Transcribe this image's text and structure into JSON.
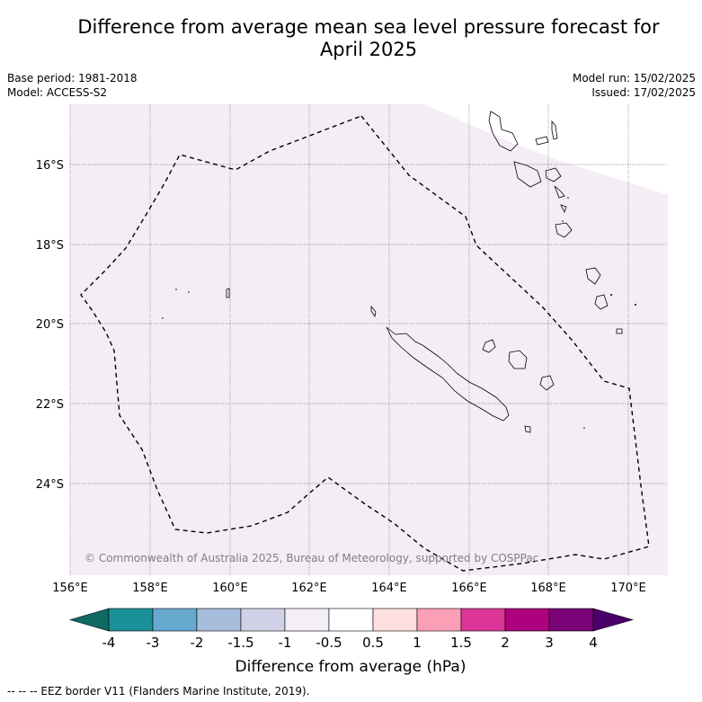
{
  "title_line1": "Difference from average mean sea level pressure forecast for",
  "title_line2": "April 2025",
  "base_period": "Base period: 1981-2018",
  "model": "Model: ACCESS-S2",
  "model_run": "Model run: 15/02/2025",
  "issued": "Issued: 17/02/2025",
  "copyright": "© Commonwealth of Australia 2025, Bureau of Meteorology, supported by COSPPac",
  "map": {
    "lat_labels": [
      "16°S",
      "18°S",
      "20°S",
      "22°S",
      "24°S"
    ],
    "lon_labels": [
      "156°E",
      "158°E",
      "160°E",
      "162°E",
      "164°E",
      "166°E",
      "168°E",
      "170°E"
    ],
    "fill_colors": {
      "main": "#f5edf5",
      "upper_right": "#ffffff"
    }
  },
  "colorbar": {
    "label": "Difference from average (hPa)",
    "ticks": [
      "-4",
      "-3",
      "-2",
      "-1.5",
      "-1",
      "-0.5",
      "0.5",
      "1",
      "1.5",
      "2",
      "3",
      "4"
    ],
    "colors": [
      "#0d6b63",
      "#1a9099",
      "#67a9cf",
      "#a6bddb",
      "#d0d1e6",
      "#f4eef6",
      "#ffffff",
      "#fde0dd",
      "#fa9fb5",
      "#dd3497",
      "#ae017e",
      "#7a0177",
      "#49006a"
    ]
  },
  "footnote": "-- -- -- EEZ border V11 (Flanders Marine Institute, 2019)."
}
